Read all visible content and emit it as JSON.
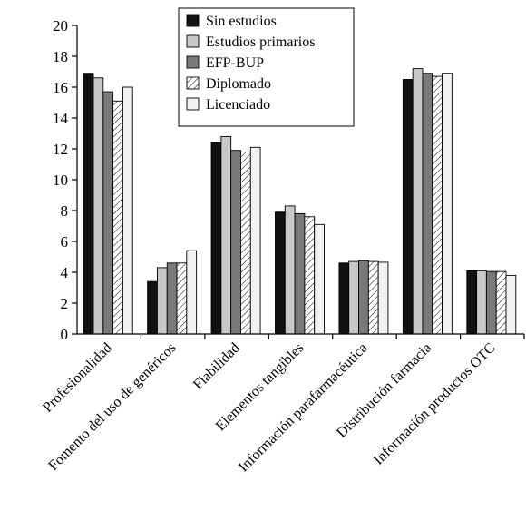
{
  "chart_data": {
    "type": "bar",
    "categories": [
      "Profesionalidad",
      "Fomento del uso de genéricos",
      "Fiabilidad",
      "Elementos tangibles",
      "Información parafarmacéutica",
      "Distribución farmacia",
      "Información productos OTC"
    ],
    "series": [
      {
        "name": "Sin estudios",
        "color": "#111111",
        "pattern": "solid",
        "values": [
          16.9,
          3.4,
          12.4,
          7.9,
          4.6,
          16.5,
          4.1
        ]
      },
      {
        "name": "Estudios primarios",
        "color": "#c8c8c8",
        "pattern": "solid",
        "values": [
          16.6,
          4.3,
          12.8,
          8.3,
          4.7,
          17.2,
          4.1
        ]
      },
      {
        "name": "EFP-BUP",
        "color": "#7a7a7a",
        "pattern": "solid",
        "values": [
          15.7,
          4.6,
          11.9,
          7.8,
          4.75,
          16.9,
          4.05
        ]
      },
      {
        "name": "Diplomado",
        "color": "#ffffff",
        "pattern": "hatch",
        "values": [
          15.1,
          4.6,
          11.8,
          7.6,
          4.7,
          16.7,
          4.05
        ]
      },
      {
        "name": "Licenciado",
        "color": "#f2f2f2",
        "pattern": "solid",
        "values": [
          16.0,
          5.4,
          12.1,
          7.1,
          4.65,
          16.9,
          3.8
        ]
      }
    ],
    "ylim": [
      0,
      20
    ],
    "yticks": [
      "0",
      "2",
      "4",
      "6",
      "8",
      "10",
      "12",
      "14",
      "16",
      "18",
      "20"
    ],
    "legend_position": "top-center",
    "grid": false
  }
}
